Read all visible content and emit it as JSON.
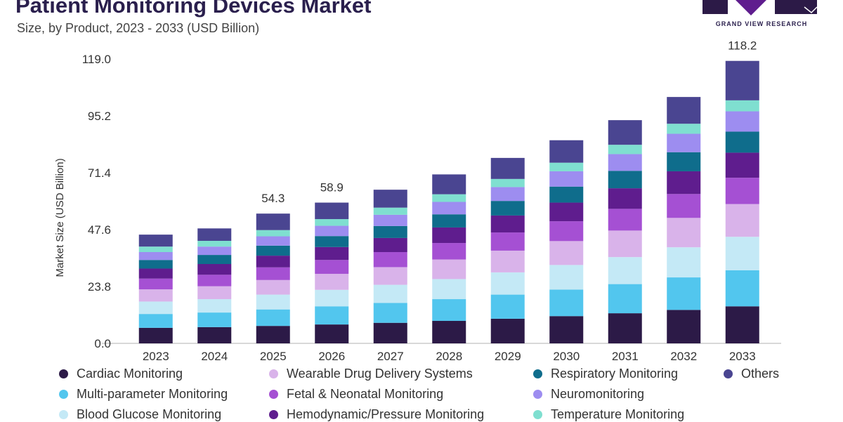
{
  "header": {
    "title": "Patient Monitoring Devices Market",
    "subtitle": "Size, by Product, 2023 - 2033 (USD Billion)",
    "brand": "GRAND VIEW RESEARCH"
  },
  "chart_data": {
    "type": "bar",
    "stacked": true,
    "title": "Patient Monitoring Devices Market",
    "subtitle": "Size, by Product, 2023 - 2033 (USD Billion)",
    "xlabel": "",
    "ylabel": "Market Size (USD Billion)",
    "ylim": [
      0,
      119
    ],
    "yticks": [
      "0.0",
      "23.8",
      "47.6",
      "71.4",
      "95.2",
      "119.0"
    ],
    "categories": [
      "2023",
      "2024",
      "2025",
      "2026",
      "2027",
      "2028",
      "2029",
      "2030",
      "2031",
      "2032",
      "2033"
    ],
    "totals_labels": {
      "2025": "54.3",
      "2026": "58.9",
      "2033": "118.2"
    },
    "legend_position": "bottom",
    "grid": false,
    "series": [
      {
        "name": "Cardiac Monitoring",
        "color": "#2c1a47",
        "values": [
          6.5,
          6.8,
          7.3,
          7.9,
          8.6,
          9.4,
          10.3,
          11.4,
          12.6,
          14.0,
          15.5
        ]
      },
      {
        "name": "Multi-parameter Monitoring",
        "color": "#52c6ee",
        "values": [
          5.8,
          6.1,
          6.9,
          7.6,
          8.3,
          9.1,
          10.1,
          11.1,
          12.2,
          13.6,
          15.1
        ]
      },
      {
        "name": "Blood Glucose Monitoring",
        "color": "#c4e9f6",
        "values": [
          5.2,
          5.6,
          6.2,
          6.9,
          7.6,
          8.4,
          9.3,
          10.3,
          11.3,
          12.6,
          14.0
        ]
      },
      {
        "name": "Wearable Drug Delivery Systems",
        "color": "#d9b3ea",
        "values": [
          5.1,
          5.4,
          6.1,
          6.7,
          7.4,
          8.2,
          9.1,
          10.0,
          11.1,
          12.3,
          13.7
        ]
      },
      {
        "name": "Fetal & Neonatal Monitoring",
        "color": "#a550d3",
        "values": [
          4.5,
          4.8,
          5.3,
          5.8,
          6.3,
          6.9,
          7.6,
          8.3,
          9.1,
          10.0,
          11.0
        ]
      },
      {
        "name": "Hemodynamic/Pressure Monitoring",
        "color": "#5f1d8e",
        "values": [
          4.2,
          4.5,
          4.9,
          5.4,
          5.9,
          6.5,
          7.1,
          7.8,
          8.6,
          9.5,
          10.5
        ]
      },
      {
        "name": "Respiratory Monitoring",
        "color": "#0f6d8c",
        "values": [
          3.6,
          3.8,
          4.2,
          4.6,
          5.0,
          5.5,
          6.1,
          6.7,
          7.3,
          8.0,
          8.8
        ]
      },
      {
        "name": "Neuromonitoring",
        "color": "#9d8df0",
        "values": [
          3.3,
          3.5,
          3.9,
          4.3,
          4.7,
          5.2,
          5.8,
          6.4,
          7.0,
          7.7,
          8.5
        ]
      },
      {
        "name": "Temperature Monitoring",
        "color": "#7fdfd0",
        "values": [
          2.3,
          2.4,
          2.6,
          2.8,
          3.0,
          3.2,
          3.4,
          3.6,
          3.9,
          4.2,
          4.6
        ]
      },
      {
        "name": "Others",
        "color": "#4a4591",
        "values": [
          5.0,
          5.2,
          6.9,
          6.9,
          7.5,
          8.3,
          8.8,
          9.4,
          10.3,
          11.2,
          16.5
        ]
      }
    ]
  }
}
